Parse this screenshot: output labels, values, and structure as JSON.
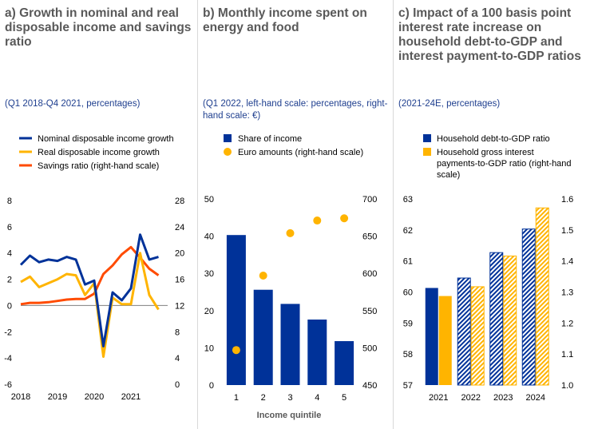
{
  "colors": {
    "navy": "#003299",
    "yellow": "#ffb400",
    "orange": "#ff4b00",
    "grey": "#808080"
  },
  "chart_data": [
    {
      "id": "a",
      "type": "line",
      "title": "a) Growth in nominal and real disposable income and savings ratio",
      "subtitle": "(Q1 2018-Q4 2021, percentages)",
      "x": [
        2018.0,
        2018.25,
        2018.5,
        2018.75,
        2019.0,
        2019.25,
        2019.5,
        2019.75,
        2020.0,
        2020.25,
        2020.5,
        2020.75,
        2021.0,
        2021.25,
        2021.5,
        2021.75
      ],
      "xticks": [
        "2018",
        "2019",
        "2020",
        "2021"
      ],
      "yleft": {
        "min": -6,
        "max": 8,
        "step": 2,
        "ticks": [
          "-6",
          "-4",
          "-2",
          "0",
          "2",
          "4",
          "6",
          "8"
        ]
      },
      "yright": {
        "min": 0,
        "max": 28,
        "step": 4,
        "ticks": [
          "0",
          "4",
          "8",
          "12",
          "16",
          "20",
          "24",
          "28"
        ]
      },
      "series": [
        {
          "name": "Nominal disposable income growth",
          "axis": "left",
          "color": "#003299",
          "values": [
            3.1,
            3.8,
            3.3,
            3.5,
            3.4,
            3.7,
            3.5,
            1.6,
            1.9,
            -3.1,
            1.0,
            0.4,
            1.3,
            5.4,
            3.5,
            3.7
          ]
        },
        {
          "name": "Real disposable income growth",
          "axis": "left",
          "color": "#ffb400",
          "values": [
            1.8,
            2.2,
            1.4,
            1.7,
            2.0,
            2.4,
            2.3,
            0.8,
            1.7,
            -3.9,
            0.6,
            0.1,
            0.1,
            4.0,
            0.8,
            -0.3
          ]
        },
        {
          "name": "Savings ratio (right-hand scale)",
          "axis": "right",
          "color": "#ff4b00",
          "values": [
            12.2,
            12.4,
            12.4,
            12.5,
            12.7,
            12.9,
            13.0,
            13.0,
            13.8,
            16.8,
            18.1,
            19.8,
            20.9,
            19.3,
            17.6,
            16.6
          ]
        }
      ]
    },
    {
      "id": "b",
      "type": "bar",
      "title": "b) Monthly income spent on energy and food",
      "subtitle": "(Q1 2022, left-hand scale: percentages, right-hand scale: €)",
      "categories": [
        "1",
        "2",
        "3",
        "4",
        "5"
      ],
      "xlabel": "Income quintile",
      "yleft": {
        "min": 0,
        "max": 50,
        "step": 10,
        "ticks": [
          "0",
          "10",
          "20",
          "30",
          "40",
          "50"
        ]
      },
      "yright": {
        "min": 450,
        "max": 700,
        "step": 50,
        "ticks": [
          "450",
          "500",
          "550",
          "600",
          "650",
          "700"
        ]
      },
      "series": [
        {
          "name": "Share of income",
          "axis": "left",
          "color": "#003299",
          "kind": "bar",
          "values": [
            40.3,
            25.6,
            21.8,
            17.6,
            11.8
          ]
        },
        {
          "name": "Euro amounts (right-hand scale)",
          "axis": "right",
          "color": "#ffb400",
          "kind": "dot",
          "values": [
            497,
            597,
            654,
            671,
            674
          ]
        }
      ]
    },
    {
      "id": "c",
      "type": "bar",
      "title": "c) Impact of a 100 basis point interest rate increase on household debt-to-GDP and interest payment-to-GDP ratios",
      "subtitle": "(2021-24E, percentages)",
      "categories": [
        "2021",
        "2022",
        "2023",
        "2024"
      ],
      "yleft": {
        "min": 57,
        "max": 63,
        "step": 1,
        "ticks": [
          "57",
          "58",
          "59",
          "60",
          "61",
          "62",
          "63"
        ]
      },
      "yright": {
        "min": 1.0,
        "max": 1.6,
        "step": 0.1,
        "ticks": [
          "1.0",
          "1.1",
          "1.2",
          "1.3",
          "1.4",
          "1.5",
          "1.6"
        ]
      },
      "series": [
        {
          "name": "Household debt-to-GDP ratio",
          "axis": "left",
          "color": "#003299",
          "values": [
            60.13,
            60.45,
            61.27,
            62.03
          ]
        },
        {
          "name": "Household gross interest payments-to-GDP ratio (right-hand scale)",
          "axis": "right",
          "color": "#ffb400",
          "values": [
            1.287,
            1.317,
            1.416,
            1.571
          ]
        }
      ],
      "hatched_from_index": 1
    }
  ],
  "legend_text": {
    "c_interest_lines": [
      "Household gross interest",
      "payments-to-GDP ratio (right-hand",
      "scale)"
    ]
  }
}
